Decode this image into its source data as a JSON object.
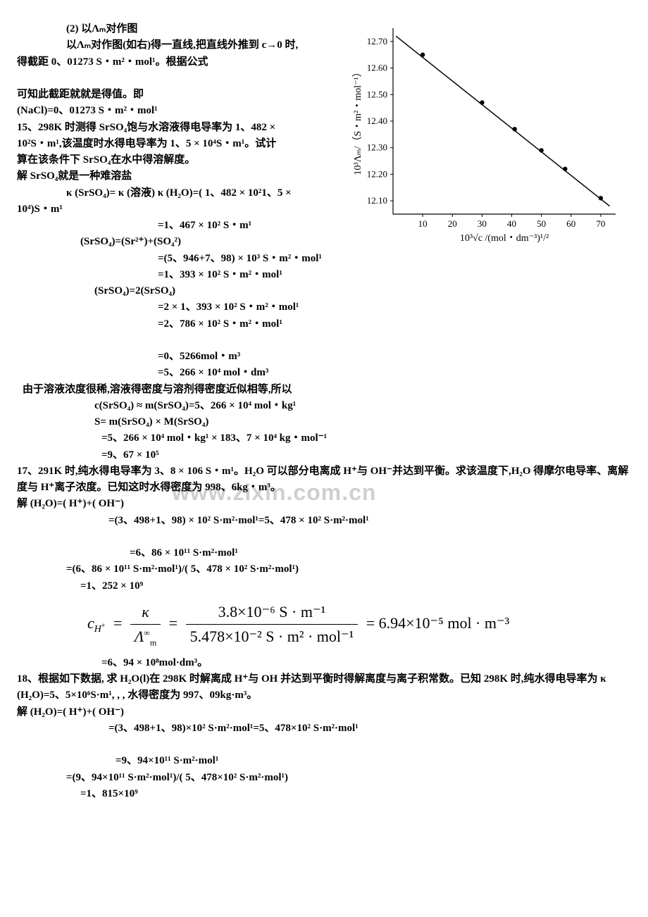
{
  "wm": "www.zixin.com.cn",
  "p1": "(2) 以Λₘ对作图",
  "p2": "以Λₘ对作图(如右)得一直线,把直线外推到 c→0 时,",
  "p3": "得截距 0、01273 S・m²・mol¹。根据公式",
  "p4": "可知此截距就就是得值。即",
  "p5": "  (NaCl)=0、01273 S・m²・mol¹",
  "p6": "15、298K 时测得 SrSO₄饱与水溶液得电导率为 1、482 ×",
  "p7": "10²S・m¹,该温度时水得电导率为 1、5 × 10⁴S・m¹。试计",
  "p8": "算在该条件下 SrSO₄在水中得溶解度。",
  "p9": "解  SrSO₄就是一种难溶盐",
  "p10": "κ (SrSO₄)= κ (溶液) κ (H₂O)=( 1、482 × 10²1、5 ×",
  "p11": "10⁴)S・m¹",
  "p12": "=1、467 × 10² S・m¹",
  "p13": "(SrSO₄)=(Sr²⁺)+(SO₄²)",
  "p14": "=(5、946+7、98) × 10³ S・m²・mol¹",
  "p15": "=1、393 × 10² S・m²・mol¹",
  "p16": "(SrSO₄)=2(SrSO₄)",
  "p17": "=2 × 1、393 × 10² S・m²・mol¹",
  "p18": "=2、786 × 10² S・m²・mol¹",
  "p19": "=0、5266mol・m³",
  "p20": "=5、266 × 10⁴ mol・dm³",
  "p21": "由于溶液浓度很稀,溶液得密度与溶剂得密度近似相等,所以",
  "p22": "c(SrSO₄) ≈ m(SrSO₄)=5、266 × 10⁴ mol・kg¹",
  "p23": "S= m(SrSO₄) × M(SrSO₄)",
  "p24": "=5、266 × 10⁴ mol・kg¹ × 183、7 × 10⁴ kg・mol⁻¹",
  "p25": "=9、67 × 10⁵",
  "p26": "17、291K 时,纯水得电导率为 3、8 × 106 S・m¹。H₂O 可以部分电离成 H⁺与 OH⁻并达到平衡。求该温度下,H₂O 得摩尔电导率、离解度与 H⁺离子浓度。已知这时水得密度为 998、6kg・m³。",
  "p27": "解  (H₂O)=( H⁺)+( OH⁻)",
  "p28": "=(3、498+1、98) × 10² S·m²·mol¹=5、478 × 10² S·m²·mol¹",
  "p29": "=6、86 × 10¹¹ S·m²·mol¹",
  "p30": "=(6、86 × 10¹¹ S·m²·mol¹)/( 5、478 × 10² S·m²·mol¹)",
  "p31": "=1、252 × 10⁹",
  "p32a": "c",
  "p32a2": "H",
  "p32b": "=",
  "p32c_top": "κ",
  "p32c_bot": "Λ",
  "p32c_bot_sup": "∞",
  "p32c_bot_sub": "m",
  "p32d": "=",
  "p32e_top": "3.8×10⁻⁶ S · m⁻¹",
  "p32e_bot": "5.478×10⁻² S · m² · mol⁻¹",
  "p32f": "= 6.94×10⁻⁵ mol · m⁻³",
  "p33": "=6、94 × 10⁸mol·dm³。",
  "p34": "18、根据如下数据, 求 H₂O(l)在 298K 时解离成 H⁺与 OH 并达到平衡时得解离度与离子积常数。已知 298K 时,纯水得电导率为 κ (H₂O)=5、5×10⁶S·m¹, , , 水得密度为 997、09kg·m³。",
  "p35": "解  (H₂O)=( H⁺)+( OH⁻)",
  "p36": "=(3、498+1、98)×10² S·m²·mol¹=5、478×10² S·m²·mol¹",
  "p37": "=9、94×10¹¹ S·m²·mol¹",
  "p38": "=(9、94×10¹¹ S·m²·mol¹)/( 5、478×10² S·m²·mol¹)",
  "p39": "=1、815×10⁹",
  "chart": {
    "type": "line",
    "title": "",
    "ylabel": "10³Λₘ/（S・m²・mol⁻¹）",
    "xlabel": "10³√c /(mol・dm⁻³)¹/²",
    "xlim": [
      0,
      75
    ],
    "ylim": [
      12.05,
      12.75
    ],
    "xticks": [
      10,
      20,
      30,
      40,
      50,
      60,
      70
    ],
    "yticks": [
      12.1,
      12.2,
      12.3,
      12.4,
      12.5,
      12.6,
      12.7
    ],
    "points": [
      {
        "x": 10,
        "y": 12.65
      },
      {
        "x": 30,
        "y": 12.47
      },
      {
        "x": 41,
        "y": 12.37
      },
      {
        "x": 50,
        "y": 12.29
      },
      {
        "x": 58,
        "y": 12.22
      },
      {
        "x": 70,
        "y": 12.11
      }
    ],
    "line_start": {
      "x": 1,
      "y": 12.72
    },
    "line_end": {
      "x": 73,
      "y": 12.08
    },
    "axis_color": "#000000",
    "line_color": "#000000",
    "point_color": "#000000",
    "bg": "#ffffff",
    "font_size": 13
  }
}
